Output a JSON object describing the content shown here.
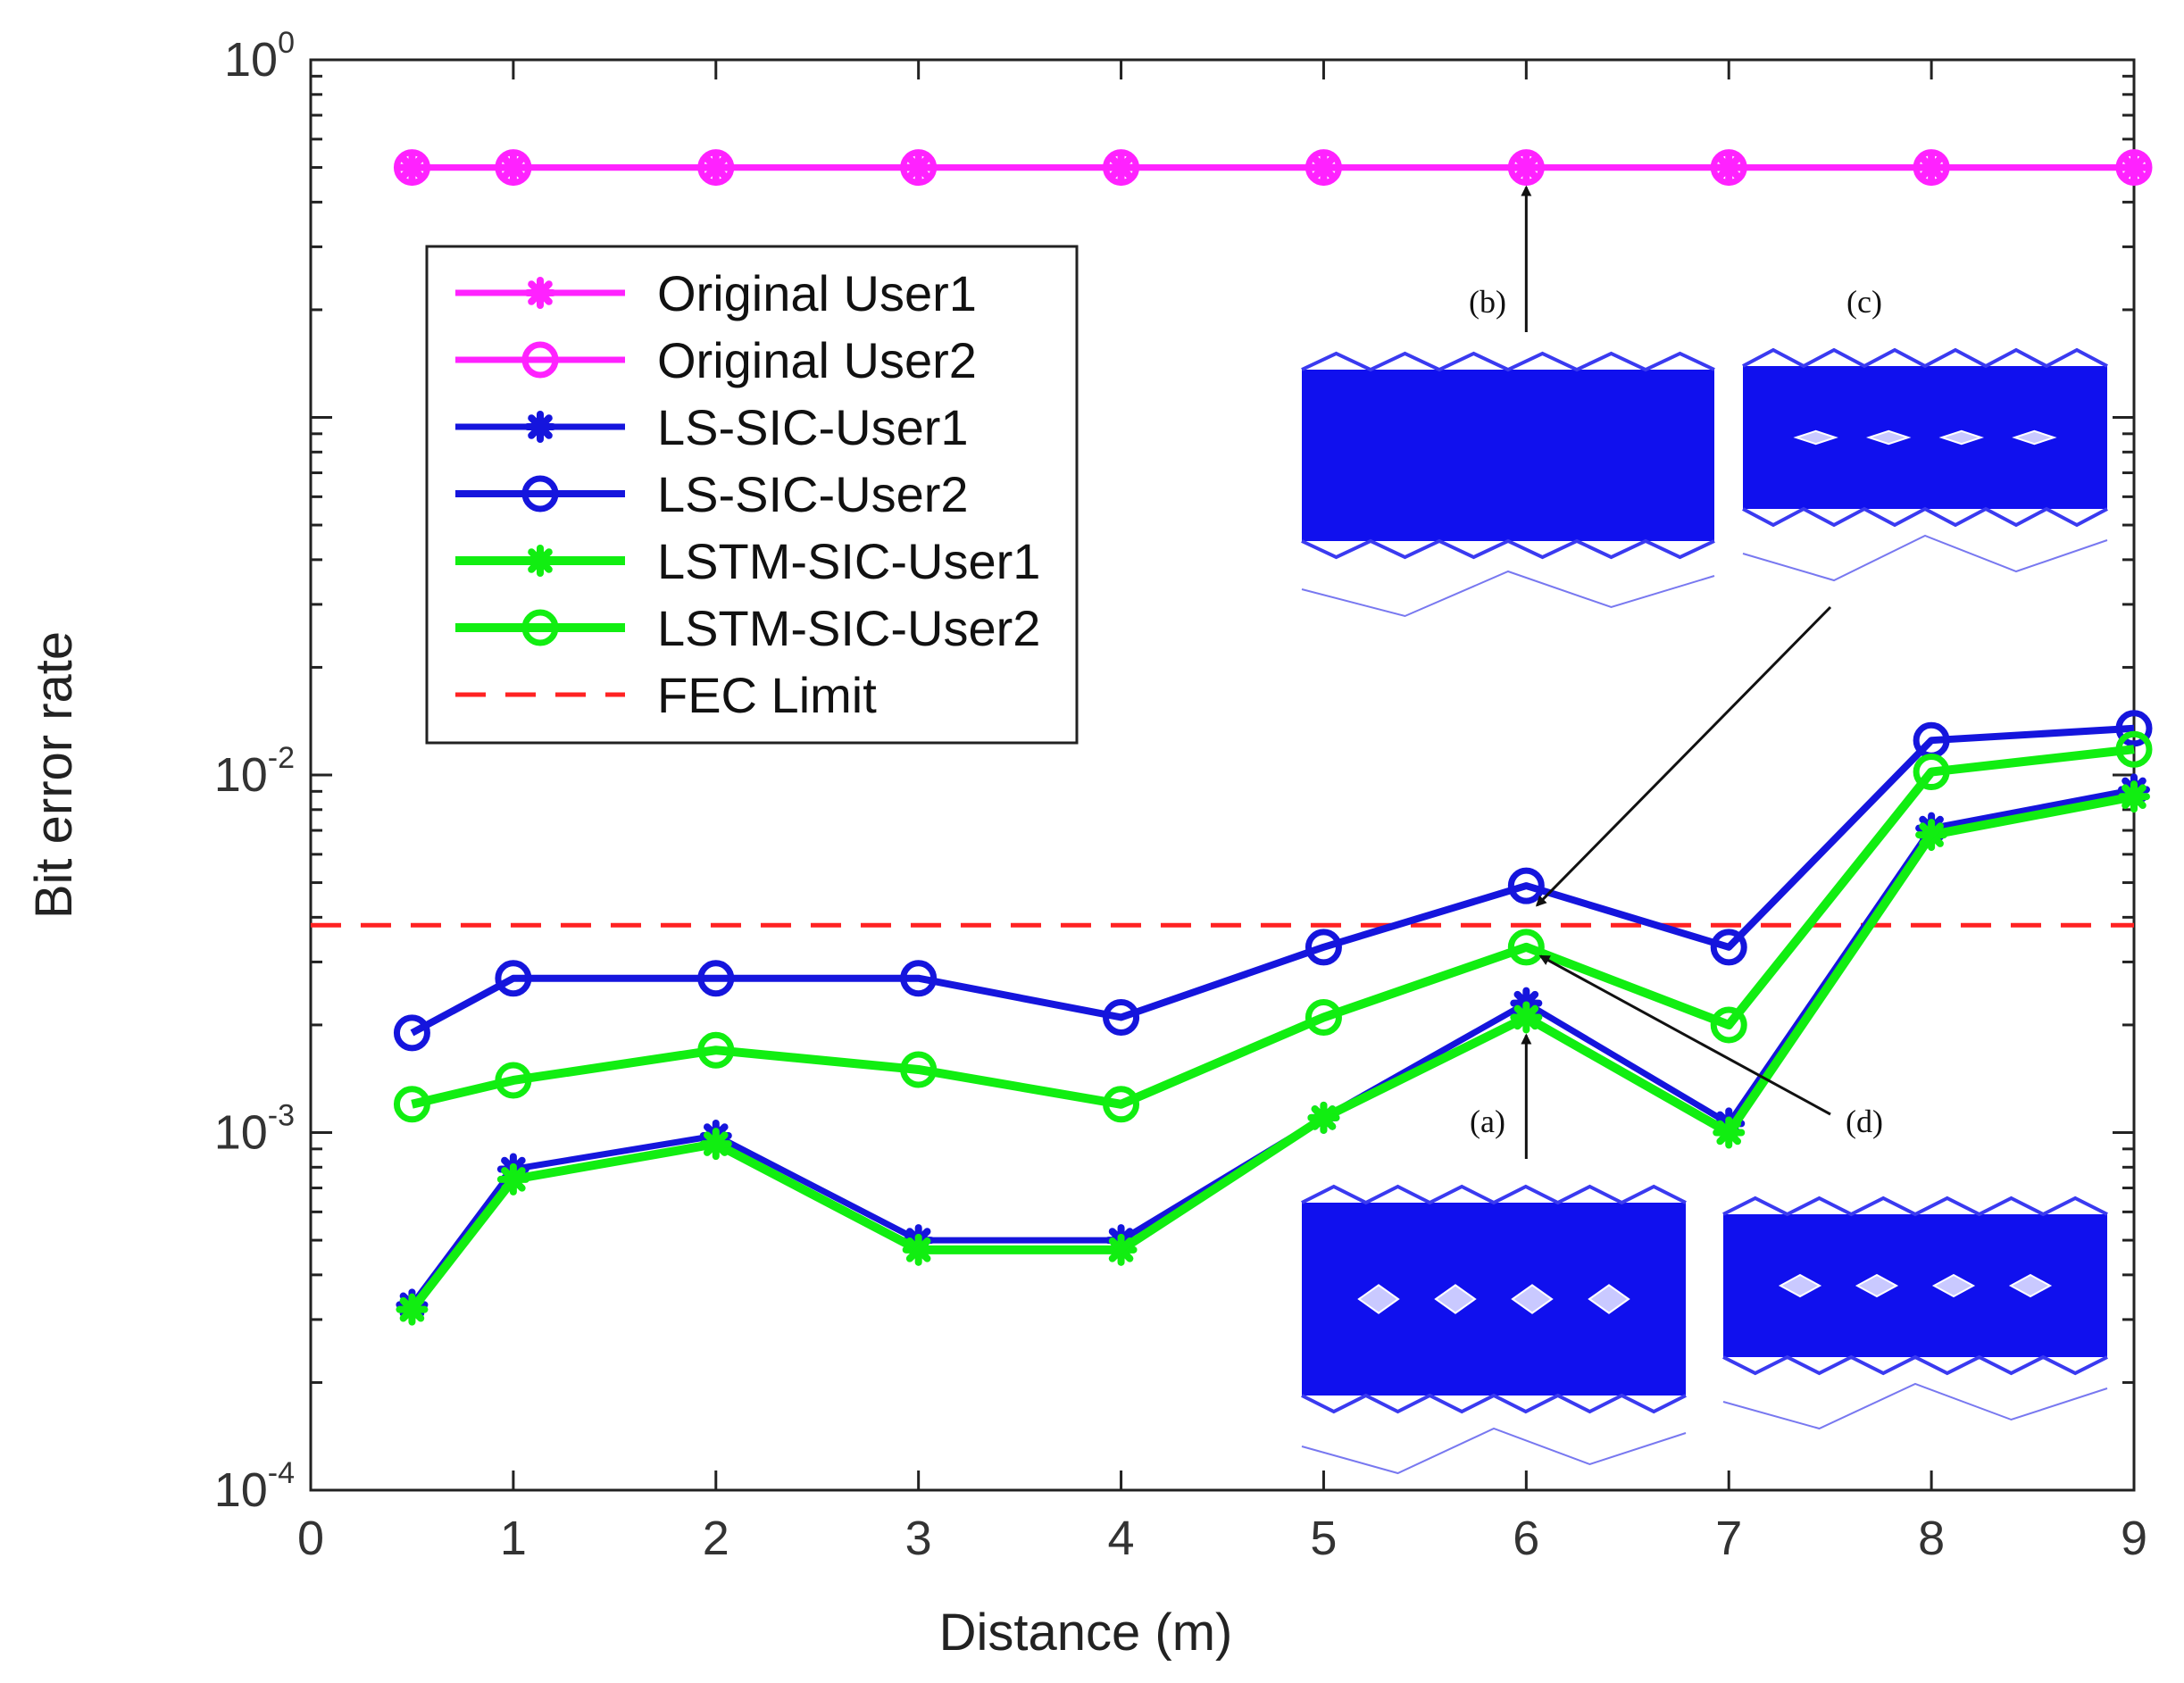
{
  "chart_data": {
    "type": "line",
    "xlabel": "Distance (m)",
    "ylabel": "Bit error rate",
    "xlim": [
      0,
      9
    ],
    "ylim": [
      0.0001,
      1
    ],
    "yscale": "log",
    "xticks": [
      0,
      1,
      2,
      3,
      4,
      5,
      6,
      7,
      8,
      9
    ],
    "yticks": [
      {
        "base": "10",
        "exp": "-4",
        "value": 0.0001
      },
      {
        "base": "10",
        "exp": "-3",
        "value": 0.001
      },
      {
        "base": "10",
        "exp": "-2",
        "value": 0.01
      },
      {
        "base": "10",
        "exp": "0",
        "value": 1
      }
    ],
    "grid": false,
    "legend_position": "upper-left",
    "x": [
      0.5,
      1,
      2,
      3,
      4,
      5,
      6,
      7,
      8,
      9
    ],
    "series": [
      {
        "name": "Original User1",
        "color": "#ff22ff",
        "marker": "asterisk",
        "values": [
          0.5,
          0.5,
          0.5,
          0.5,
          0.5,
          0.5,
          0.5,
          0.5,
          0.5,
          0.5
        ]
      },
      {
        "name": "Original User2",
        "color": "#ff22ff",
        "marker": "circle",
        "values": [
          0.5,
          0.5,
          0.5,
          0.5,
          0.5,
          0.5,
          0.5,
          0.5,
          0.5,
          0.5
        ]
      },
      {
        "name": "LS-SIC-User1",
        "color": "#1515dd",
        "marker": "asterisk",
        "values": [
          0.00033,
          0.00079,
          0.00098,
          0.0005,
          0.0005,
          0.0011,
          0.0023,
          0.00106,
          0.0071,
          0.0091
        ]
      },
      {
        "name": "LS-SIC-User2",
        "color": "#1515dd",
        "marker": "circle",
        "values": [
          0.0019,
          0.0027,
          0.0027,
          0.0027,
          0.0021,
          0.0033,
          0.0049,
          0.0033,
          0.0125,
          0.0135
        ]
      },
      {
        "name": "LSTM-SIC-User1",
        "color": "#11ee11",
        "marker": "asterisk",
        "values": [
          0.00032,
          0.00074,
          0.00093,
          0.00047,
          0.00047,
          0.0011,
          0.0021,
          0.001,
          0.0068,
          0.0087
        ]
      },
      {
        "name": "LSTM-SIC-User2",
        "color": "#11ee11",
        "marker": "circle",
        "values": [
          0.0012,
          0.0014,
          0.0017,
          0.0015,
          0.0012,
          0.0021,
          0.0033,
          0.002,
          0.0102,
          0.0118
        ]
      }
    ],
    "reference_lines": [
      {
        "name": "FEC Limit",
        "value": 0.0038,
        "color": "#ff2222",
        "style": "dashed"
      }
    ],
    "annotations": [
      {
        "label": "(a)",
        "target": "LSTM-SIC-User1 at 6 m"
      },
      {
        "label": "(b)",
        "target": "Original User2 at 6 m"
      },
      {
        "label": "(c)",
        "target": "LS-SIC-User2 at 6 m"
      },
      {
        "label": "(d)",
        "target": "LSTM-SIC-User2 at 6 m"
      }
    ]
  }
}
